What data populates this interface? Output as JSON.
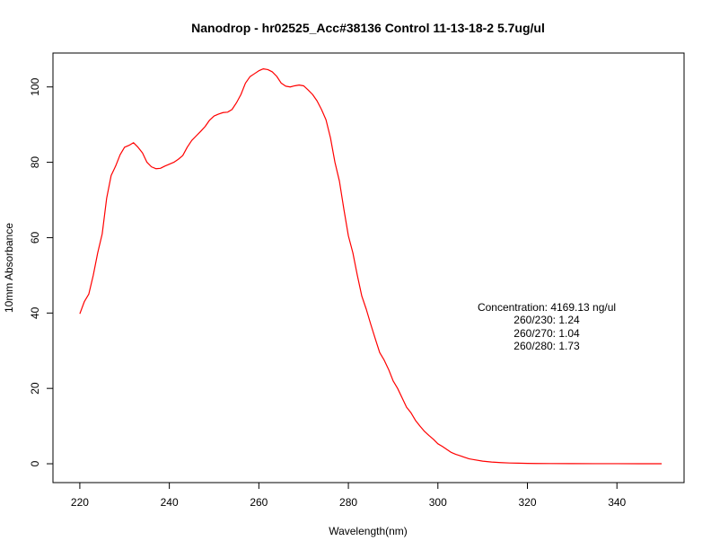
{
  "chart_data": {
    "type": "line",
    "title": "Nanodrop - hr02525_Acc#38136  Control 11-13-18-2 5.7ug/ul",
    "xlabel": "Wavelength(nm)",
    "ylabel": "10mm Absorbance",
    "xlim": [
      214,
      355
    ],
    "ylim": [
      -5,
      109
    ],
    "xticks": [
      220,
      240,
      260,
      280,
      300,
      320,
      340
    ],
    "yticks": [
      0,
      20,
      40,
      60,
      80,
      100
    ],
    "grid": false,
    "series": [
      {
        "color": "#ff0000",
        "x": [
          220,
          221,
          222,
          223,
          224,
          225,
          226,
          227,
          228,
          229,
          230,
          231,
          232,
          233,
          234,
          235,
          236,
          237,
          238,
          239,
          240,
          241,
          242,
          243,
          244,
          245,
          246,
          247,
          248,
          249,
          250,
          251,
          252,
          253,
          254,
          255,
          256,
          257,
          258,
          259,
          260,
          261,
          262,
          263,
          264,
          265,
          266,
          267,
          268,
          269,
          270,
          271,
          272,
          273,
          274,
          275,
          276,
          277,
          278,
          279,
          280,
          281,
          282,
          283,
          284,
          285,
          286,
          287,
          288,
          289,
          290,
          291,
          292,
          293,
          294,
          295,
          296,
          297,
          298,
          299,
          300,
          301,
          302,
          303,
          304,
          305,
          306,
          307,
          308,
          310,
          312,
          314,
          316,
          318,
          320,
          322,
          325,
          330,
          335,
          340,
          345,
          350
        ],
        "y": [
          39.8,
          43.0,
          45.0,
          50.0,
          56.0,
          61.0,
          70.5,
          76.5,
          79.0,
          82.0,
          84.0,
          84.5,
          85.2,
          84.0,
          82.5,
          80.0,
          78.8,
          78.3,
          78.4,
          79.0,
          79.5,
          80.0,
          80.8,
          81.8,
          84.0,
          85.8,
          87.0,
          88.2,
          89.5,
          91.2,
          92.3,
          92.8,
          93.2,
          93.3,
          94.0,
          95.8,
          98.0,
          101.0,
          102.7,
          103.5,
          104.3,
          104.8,
          104.6,
          104.0,
          102.8,
          101.0,
          100.2,
          100.0,
          100.3,
          100.5,
          100.3,
          99.2,
          98.0,
          96.3,
          94.0,
          91.3,
          86.5,
          80.0,
          75.0,
          67.5,
          60.5,
          56.0,
          50.0,
          44.5,
          41.0,
          37.0,
          33.2,
          29.5,
          27.5,
          25.0,
          22.0,
          20.0,
          17.5,
          15.0,
          13.5,
          11.5,
          10.0,
          8.6,
          7.5,
          6.5,
          5.3,
          4.6,
          3.8,
          3.0,
          2.5,
          2.1,
          1.7,
          1.3,
          1.1,
          0.7,
          0.45,
          0.3,
          0.2,
          0.15,
          0.1,
          0.07,
          0.05,
          0.03,
          0.02,
          0.02,
          0.01,
          0.01
        ]
      }
    ],
    "annotations": [
      "Concentration: 4169.13 ng/ul",
      "260/230: 1.24",
      "260/270: 1.04",
      "260/280: 1.73"
    ]
  }
}
